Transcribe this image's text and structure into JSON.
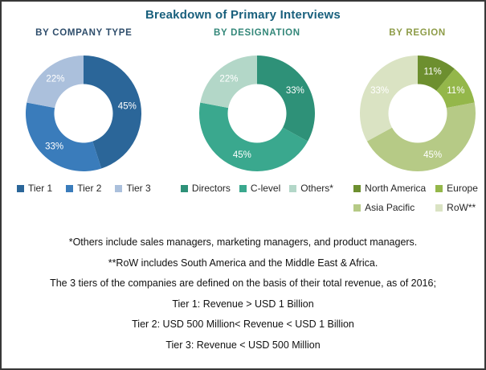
{
  "title": "Breakdown of Primary Interviews",
  "title_color": "#19607d",
  "chart_data": [
    {
      "type": "pie",
      "donut": true,
      "title": "BY COMPANY TYPE",
      "title_color": "#2e4d6b",
      "labels": [
        "Tier 1",
        "Tier 2",
        "Tier 3"
      ],
      "values": [
        45,
        33,
        22
      ],
      "value_labels": [
        "45%",
        "33%",
        "22%"
      ],
      "colors": [
        "#2b6699",
        "#3a7cbb",
        "#abc0dc"
      ],
      "legend_position": "bottom",
      "start_angle_deg": 0,
      "direction": "clockwise"
    },
    {
      "type": "pie",
      "donut": true,
      "title": "BY DESIGNATION",
      "title_color": "#338779",
      "labels": [
        "Directors",
        "C-level",
        "Others*"
      ],
      "values": [
        33,
        45,
        22
      ],
      "value_labels": [
        "33%",
        "45%",
        "22%"
      ],
      "colors": [
        "#2e9178",
        "#3aa88e",
        "#b3d7c8"
      ],
      "legend_position": "bottom",
      "start_angle_deg": 0,
      "direction": "clockwise"
    },
    {
      "type": "pie",
      "donut": true,
      "title": "BY REGION",
      "title_color": "#8e9c48",
      "labels": [
        "North America",
        "Europe",
        "Asia Pacific",
        "RoW**"
      ],
      "values": [
        11,
        11,
        45,
        33
      ],
      "value_labels": [
        "11%",
        "11%",
        "45%",
        "33%"
      ],
      "colors": [
        "#6d8f2f",
        "#94b74a",
        "#b6ca86",
        "#dae3c3"
      ],
      "legend_position": "bottom",
      "start_angle_deg": 0,
      "direction": "clockwise"
    }
  ],
  "footnotes": [
    "*Others include sales managers, marketing managers, and product managers.",
    "**RoW includes South America and the Middle East & Africa.",
    "The 3 tiers of the companies are defined on the basis of their total revenue, as of 2016;",
    "Tier 1: Revenue > USD 1 Billion",
    "Tier 2: USD 500 Million< Revenue < USD 1 Billion",
    "Tier 3: Revenue < USD 500 Million"
  ]
}
